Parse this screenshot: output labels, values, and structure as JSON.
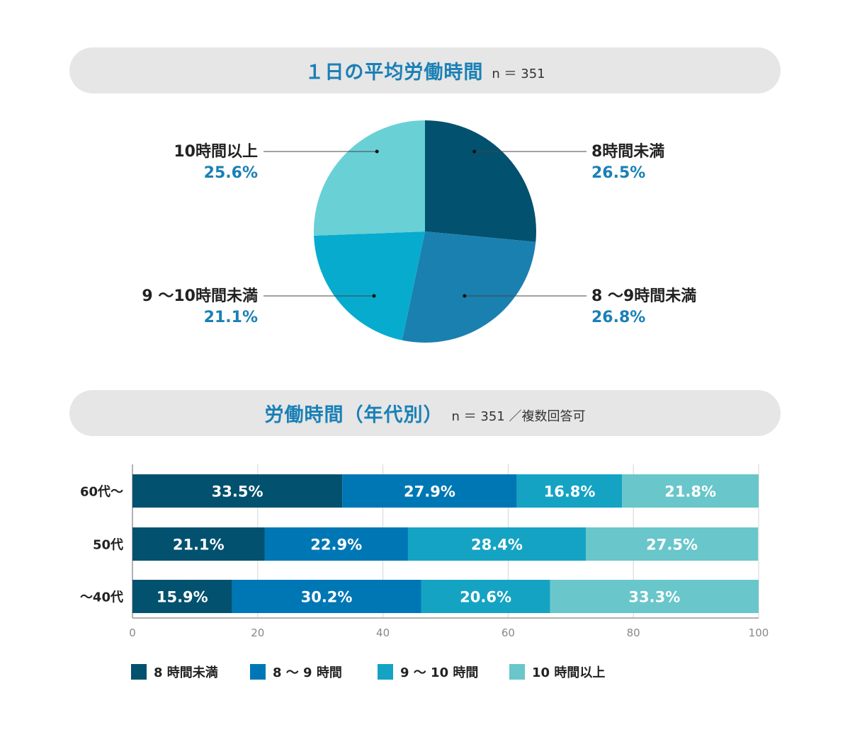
{
  "pie_section": {
    "title": "１日の平均労働時間",
    "subtitle": "n ＝ 351"
  },
  "bar_section": {
    "title": "労働時間（年代別）",
    "subtitle": "n ＝ 351 ／複数回答可"
  },
  "chart_data": [
    {
      "type": "pie",
      "title": "１日の平均労働時間",
      "subtitle": "n ＝ 351",
      "slices": [
        {
          "label": "8時間未満",
          "value": 26.5,
          "value_label": "26.5%",
          "color": "#02516f"
        },
        {
          "label": "8 ～9時間未満",
          "value": 26.8,
          "value_label": "26.8%",
          "color": "#1a80b0"
        },
        {
          "label": "9 ～10時間未満",
          "value": 21.1,
          "value_label": "21.1%",
          "color": "#07abce"
        },
        {
          "label": "10時間以上",
          "value": 25.6,
          "value_label": "25.6%",
          "color": "#69d0d6"
        }
      ]
    },
    {
      "type": "bar",
      "orientation": "horizontal",
      "stacked": true,
      "title": "労働時間（年代別）",
      "subtitle": "n ＝ 351 ／複数回答可",
      "categories": [
        "60代～",
        "50代",
        "～40代"
      ],
      "series": [
        {
          "name": "8 時間未満",
          "values": [
            33.5,
            21.1,
            15.9
          ],
          "labels": [
            "33.5%",
            "21.1%",
            "15.9%"
          ],
          "color": "#02516f"
        },
        {
          "name": "8 ～ 9 時間",
          "values": [
            27.9,
            22.9,
            30.2
          ],
          "labels": [
            "27.9%",
            "22.9%",
            "30.2%"
          ],
          "color": "#0077b5"
        },
        {
          "name": "9 ～ 10 時間",
          "values": [
            16.8,
            28.4,
            20.6
          ],
          "labels": [
            "16.8%",
            "28.4%",
            "20.6%"
          ],
          "color": "#15a3c3"
        },
        {
          "name": "10 時間以上",
          "values": [
            21.8,
            27.5,
            33.3
          ],
          "labels": [
            "21.8%",
            "27.5%",
            "33.3%"
          ],
          "color": "#69c6ca"
        }
      ],
      "xlim": [
        0,
        100
      ],
      "xticks": [
        "0",
        "20",
        "40",
        "60",
        "80",
        "100"
      ],
      "grid": true,
      "legend": "bottom"
    }
  ]
}
